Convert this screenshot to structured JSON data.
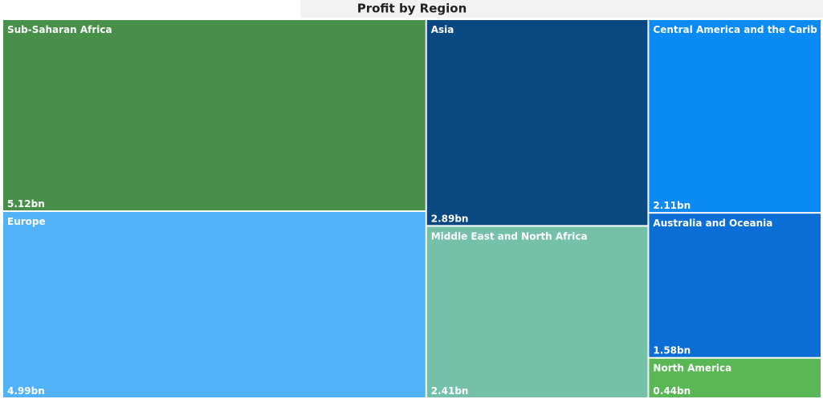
{
  "chart_data": {
    "type": "treemap",
    "title": "Profit by Region",
    "categories": [
      "Sub-Saharan Africa",
      "Europe",
      "Asia",
      "Middle East and North Africa",
      "Central America and the Caribbean",
      "Australia and Oceania",
      "North America"
    ],
    "values": [
      5.12,
      4.99,
      2.89,
      2.41,
      2.11,
      1.58,
      0.44
    ],
    "value_labels": [
      "5.12bn",
      "4.99bn",
      "2.89bn",
      "2.41bn",
      "2.11bn",
      "1.58bn",
      "0.44bn"
    ],
    "colors": [
      "#488f4a",
      "#52b2f8",
      "#0a4882",
      "#74c0a8",
      "#0a8af4",
      "#0b6ed5",
      "#59b755"
    ]
  }
}
